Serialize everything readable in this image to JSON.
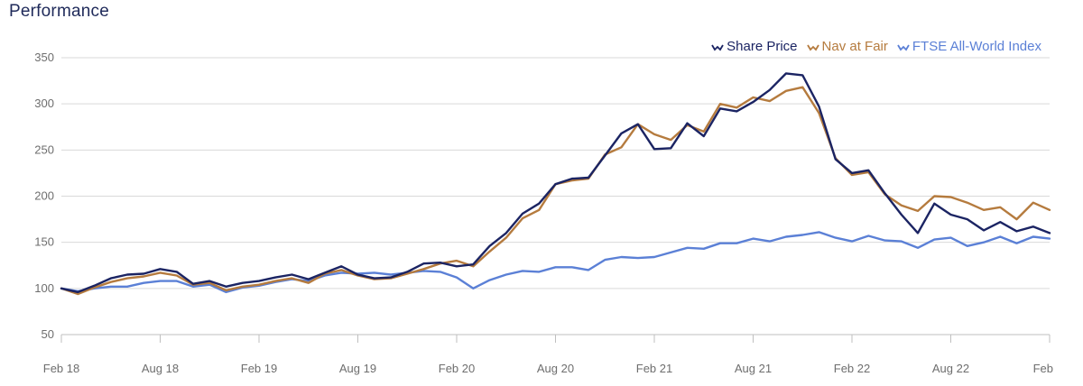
{
  "title": "Performance",
  "chart_data": {
    "type": "line",
    "title": "Performance",
    "xlabel": "",
    "ylabel": "",
    "ylim": [
      50,
      350
    ],
    "yticks": [
      50,
      100,
      150,
      200,
      250,
      300,
      350
    ],
    "grid": "horizontal",
    "legend_position": "top-right",
    "x_tick_labels": [
      "Feb 18",
      "Aug 18",
      "Feb 19",
      "Aug 19",
      "Feb 20",
      "Aug 20",
      "Feb 21",
      "Aug 21",
      "Feb 22",
      "Aug 22",
      "Feb"
    ],
    "x": [
      "2018-02",
      "2018-03",
      "2018-04",
      "2018-05",
      "2018-06",
      "2018-07",
      "2018-08",
      "2018-09",
      "2018-10",
      "2018-11",
      "2018-12",
      "2019-01",
      "2019-02",
      "2019-03",
      "2019-04",
      "2019-05",
      "2019-06",
      "2019-07",
      "2019-08",
      "2019-09",
      "2019-10",
      "2019-11",
      "2019-12",
      "2020-01",
      "2020-02",
      "2020-03",
      "2020-04",
      "2020-05",
      "2020-06",
      "2020-07",
      "2020-08",
      "2020-09",
      "2020-10",
      "2020-11",
      "2020-12",
      "2021-01",
      "2021-02",
      "2021-03",
      "2021-04",
      "2021-05",
      "2021-06",
      "2021-07",
      "2021-08",
      "2021-09",
      "2021-10",
      "2021-11",
      "2021-12",
      "2022-01",
      "2022-02",
      "2022-03",
      "2022-04",
      "2022-05",
      "2022-06",
      "2022-07",
      "2022-08",
      "2022-09",
      "2022-10",
      "2022-11",
      "2022-12",
      "2023-01",
      "2023-02"
    ],
    "series": [
      {
        "name": "Share Price",
        "color": "#1b2463",
        "values": [
          100,
          96,
          103,
          111,
          115,
          116,
          121,
          118,
          105,
          108,
          102,
          106,
          108,
          112,
          115,
          110,
          117,
          124,
          115,
          111,
          112,
          118,
          127,
          128,
          124,
          126,
          146,
          160,
          181,
          192,
          213,
          219,
          220,
          244,
          268,
          278,
          251,
          252,
          279,
          265,
          295,
          292,
          302,
          315,
          333,
          331,
          297,
          240,
          225,
          228,
          203,
          180,
          160,
          192,
          180,
          175,
          163,
          172,
          162,
          167,
          160
        ]
      },
      {
        "name": "Nav at Fair",
        "color": "#b57b3e",
        "values": [
          100,
          94,
          101,
          107,
          111,
          113,
          117,
          114,
          104,
          106,
          98,
          102,
          104,
          108,
          111,
          106,
          116,
          120,
          114,
          110,
          111,
          116,
          121,
          127,
          130,
          124,
          140,
          155,
          176,
          185,
          213,
          217,
          219,
          245,
          253,
          278,
          267,
          261,
          277,
          270,
          300,
          296,
          307,
          303,
          314,
          318,
          290,
          241,
          223,
          226,
          202,
          190,
          184,
          200,
          199,
          193,
          185,
          188,
          175,
          193,
          185
        ]
      },
      {
        "name": "FTSE All-World Index",
        "color": "#5b80d6",
        "values": [
          100,
          97,
          100,
          102,
          102,
          106,
          108,
          108,
          102,
          104,
          96,
          101,
          103,
          107,
          110,
          108,
          114,
          117,
          116,
          117,
          115,
          117,
          119,
          118,
          112,
          100,
          109,
          115,
          119,
          118,
          123,
          123,
          120,
          131,
          134,
          133,
          134,
          139,
          144,
          143,
          149,
          149,
          154,
          151,
          156,
          158,
          161,
          155,
          151,
          157,
          152,
          151,
          144,
          153,
          155,
          146,
          150,
          156,
          149,
          156,
          154
        ]
      }
    ]
  }
}
